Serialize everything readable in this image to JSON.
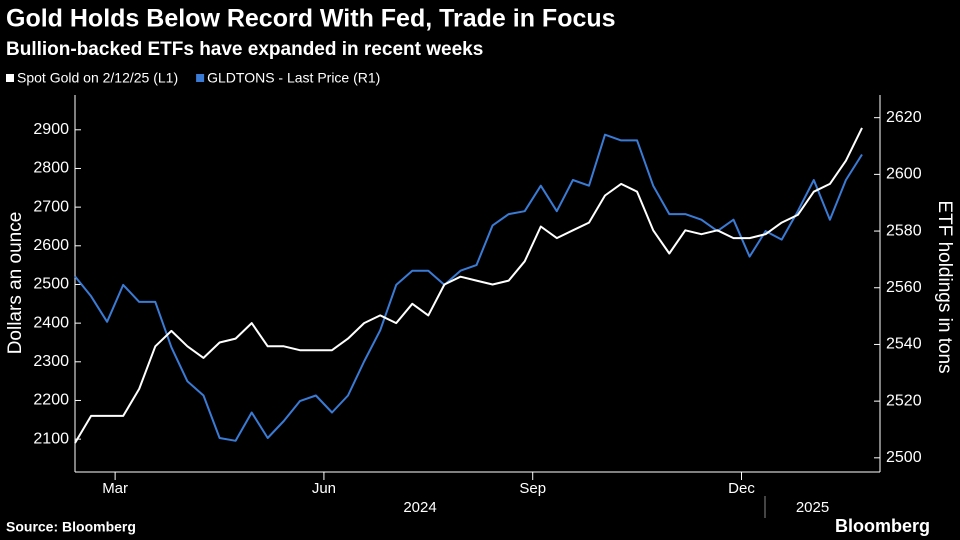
{
  "chart_data": {
    "type": "line",
    "title": "Gold Holds Below Record With Fed, Trade in Focus",
    "subtitle": "Bullion-backed ETFs have expanded in recent weeks",
    "ylabel": "Dollars an ounce",
    "y2label": "ETF holdings in tons",
    "source": "Source: Bloomberg",
    "brand": "Bloomberg",
    "categories": [
      null,
      null,
      "Mar",
      null,
      null,
      null,
      null,
      null,
      null,
      null,
      null,
      null,
      null,
      null,
      null,
      "Jun",
      null,
      null,
      null,
      null,
      null,
      null,
      null,
      null,
      null,
      null,
      null,
      null,
      "Sep",
      null,
      null,
      null,
      null,
      null,
      null,
      null,
      null,
      null,
      null,
      null,
      null,
      "Dec",
      null,
      null,
      null,
      null,
      null,
      null,
      null,
      null
    ],
    "year_labels": [
      "2024",
      "2025"
    ],
    "series": [
      {
        "name": "Spot Gold on 2/12/25 (L1)",
        "color": "#ffffff",
        "axis": "y",
        "values": [
          2090,
          2160,
          2160,
          2160,
          2230,
          2340,
          2380,
          2340,
          2310,
          2350,
          2360,
          2400,
          2340,
          2340,
          2330,
          2330,
          2330,
          2360,
          2400,
          2420,
          2400,
          2450,
          2420,
          2500,
          2520,
          2510,
          2500,
          2510,
          2560,
          2650,
          2620,
          2640,
          2660,
          2730,
          2760,
          2740,
          2640,
          2580,
          2640,
          2630,
          2640,
          2620,
          2620,
          2630,
          2660,
          2680,
          2740,
          2760,
          2820,
          2905
        ]
      },
      {
        "name": "GLDTONS - Last Price (R1)",
        "color": "#3a7bd5",
        "axis": "y2",
        "values": [
          2564,
          2557,
          2548,
          2561,
          2555,
          2555,
          2539,
          2527,
          2522,
          2507,
          2506,
          2516,
          2507,
          2513,
          2520,
          2522,
          2516,
          2522,
          2534,
          2545,
          2561,
          2566,
          2566,
          2561,
          2566,
          2568,
          2582,
          2586,
          2587,
          2596,
          2587,
          2598,
          2596,
          2614,
          2612,
          2612,
          2596,
          2586,
          2586,
          2584,
          2580,
          2584,
          2571,
          2580,
          2577,
          2587,
          2598,
          2584,
          2598,
          2607
        ]
      }
    ],
    "ylim": [
      2015,
      2990
    ],
    "yticks": [
      2100,
      2200,
      2300,
      2400,
      2500,
      2600,
      2700,
      2800,
      2900
    ],
    "y2lim": [
      2495,
      2628
    ],
    "y2ticks": [
      2500,
      2520,
      2540,
      2560,
      2580,
      2600,
      2620
    ],
    "grid": false
  }
}
